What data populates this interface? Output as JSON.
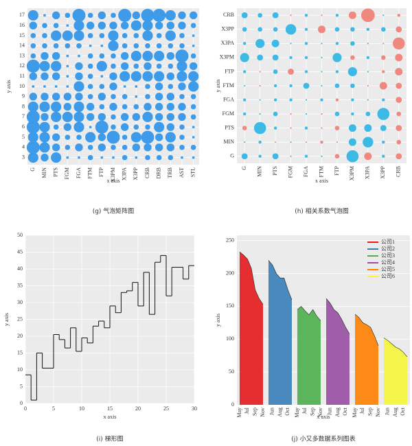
{
  "chart_data": [
    {
      "type": "bubble",
      "caption": "(g) 气泡矩阵图",
      "x_label": "x axis",
      "y_label": "y axis",
      "color": "#3d9be9",
      "categories": [
        "G",
        "MIN",
        "PTS",
        "FGM",
        "FGA",
        "FTM",
        "FTP",
        "X3PM",
        "X3PA",
        "X3PP",
        "CRB",
        "DRB",
        "TRB",
        "AST",
        "STL"
      ],
      "y": [
        3,
        4,
        5,
        6,
        7,
        8,
        9,
        10,
        11,
        12,
        13,
        14,
        15,
        16,
        17
      ],
      "ylim": [
        2.3,
        17.7
      ],
      "yticks": [
        3,
        4,
        5,
        6,
        7,
        8,
        9,
        10,
        11,
        12,
        13,
        14,
        15,
        16,
        17
      ],
      "sizes": [
        [
          4,
          3,
          4,
          1,
          1,
          2,
          1,
          1,
          2,
          1,
          2,
          2,
          2,
          1,
          1
        ],
        [
          5,
          4,
          3,
          2,
          3,
          2,
          3,
          2,
          2,
          3,
          3,
          3,
          3,
          2,
          2
        ],
        [
          4,
          4,
          3,
          2,
          2,
          4,
          3,
          5,
          2,
          4,
          5,
          3,
          4,
          2,
          1
        ],
        [
          5,
          4,
          2,
          3,
          4,
          1,
          5,
          2,
          3,
          2,
          2,
          4,
          3,
          2,
          1
        ],
        [
          5,
          3,
          4,
          4,
          4,
          3,
          3,
          2,
          3,
          3,
          4,
          3,
          3,
          3,
          2
        ],
        [
          4,
          4,
          4,
          3,
          4,
          3,
          2,
          3,
          2,
          2,
          3,
          3,
          3,
          3,
          2
        ],
        [
          3,
          3,
          3,
          3,
          3,
          2,
          3,
          2,
          2,
          1,
          2,
          3,
          3,
          2,
          2
        ],
        [
          1,
          1,
          1,
          1,
          4,
          2,
          2,
          3,
          1,
          1,
          2,
          3,
          2,
          3,
          4
        ],
        [
          3,
          3,
          3,
          1,
          3,
          2,
          1,
          3,
          4,
          4,
          4,
          4,
          3,
          4,
          4
        ],
        [
          5,
          4,
          4,
          1,
          3,
          2,
          4,
          2,
          3,
          2,
          3,
          2,
          2,
          4,
          3
        ],
        [
          2,
          3,
          3,
          1,
          1,
          2,
          2,
          2,
          3,
          4,
          4,
          4,
          3,
          5,
          2
        ],
        [
          2,
          2,
          2,
          2,
          2,
          1,
          1,
          4,
          2,
          2,
          2,
          2,
          2,
          2,
          1
        ],
        [
          2,
          2,
          4,
          4,
          4,
          2,
          2,
          4,
          2,
          2,
          4,
          2,
          4,
          2,
          1
        ],
        [
          3,
          2,
          2,
          1,
          4,
          3,
          3,
          3,
          3,
          4,
          4,
          3,
          3,
          3,
          2
        ],
        [
          4,
          1,
          3,
          2,
          5,
          2,
          3,
          2,
          5,
          3,
          5,
          5,
          4,
          3,
          3
        ]
      ]
    },
    {
      "type": "correlation",
      "caption": "(h) 相关系数气泡图",
      "x_label": "x axis",
      "y_label": "y axis",
      "positive_color": "#3cb9e4",
      "negative_color": "#f0887f",
      "categories": [
        "G",
        "MIN",
        "PTS",
        "FGM",
        "FGA",
        "FTM",
        "FTP",
        "X3PM",
        "X3PA",
        "X3PP",
        "CRB"
      ],
      "row_categories": [
        "G",
        "MIN",
        "PTS",
        "FGM",
        "FGA",
        "FTM",
        "FTP",
        "X3PM",
        "X3PA",
        "X3PP",
        "CRB"
      ],
      "values": [
        [
          0.4,
          0.2,
          0.4,
          -0.1,
          0.2,
          0.1,
          -0.3,
          0.8,
          -0.5,
          0.2,
          -0.4
        ],
        [
          0.1,
          0.2,
          -0.1,
          0.1,
          -0.1,
          -0.2,
          -0.1,
          0.5,
          0.7,
          0.2,
          -0.3
        ],
        [
          -0.3,
          0.8,
          0.2,
          -0.1,
          0.2,
          -0.1,
          -0.3,
          0.5,
          0.5,
          0.4,
          -0.4
        ],
        [
          0.2,
          0.1,
          0.3,
          -0.1,
          0.1,
          -0.1,
          0.3,
          0.2,
          0.3,
          0.8,
          -0.3
        ],
        [
          0.2,
          0.1,
          0.2,
          0.2,
          0.1,
          0.2,
          -0.2,
          0.2,
          0.1,
          0.2,
          -0.4
        ],
        [
          0.1,
          -0.1,
          0.2,
          0.2,
          0.4,
          0.1,
          0.3,
          0.3,
          -0.1,
          -0.5,
          -0.4
        ],
        [
          0.2,
          -0.1,
          0.3,
          -0.4,
          0.2,
          0.1,
          0.2,
          0.6,
          0.1,
          -0.2,
          -0.5
        ],
        [
          0.6,
          0.4,
          0.4,
          0.2,
          0.2,
          0.1,
          0.6,
          -0.3,
          0.2,
          -0.3,
          -0.5
        ],
        [
          0.2,
          0.6,
          0.5,
          0.1,
          0.2,
          0.1,
          0.2,
          0.3,
          0.1,
          -0.1,
          -0.8
        ],
        [
          0.3,
          0.3,
          0.3,
          0.7,
          0.2,
          -0.5,
          0.3,
          0.3,
          0.2,
          0.3,
          -0.4
        ],
        [
          0.4,
          0.3,
          0.4,
          -0.1,
          0.2,
          -0.1,
          0.2,
          -0.5,
          -0.9,
          0.1,
          -0.2
        ]
      ]
    },
    {
      "type": "step",
      "caption": "(i) 梯形图",
      "x_label": "x axis",
      "y_label": "y axis",
      "color": "#111111",
      "x": [
        0,
        1,
        2,
        3,
        4,
        5,
        6,
        7,
        8,
        9,
        10,
        11,
        12,
        13,
        14,
        15,
        16,
        17,
        18,
        19,
        20,
        21,
        22,
        23,
        24,
        25,
        26,
        27,
        28,
        29,
        30
      ],
      "values": [
        8.5,
        1,
        15,
        10.5,
        10.5,
        20.5,
        19,
        16.5,
        22.5,
        15.5,
        19.5,
        18,
        23,
        24.5,
        22.5,
        29,
        27,
        33,
        33.5,
        36,
        29,
        39,
        26.5,
        42,
        44,
        32,
        40.5,
        40.5,
        37,
        41,
        41
      ],
      "xlim": [
        0,
        30
      ],
      "xticks": [
        0,
        5,
        10,
        15,
        20,
        25,
        30
      ],
      "ylim": [
        0,
        50
      ],
      "yticks": [
        0,
        5,
        10,
        15,
        20,
        25,
        30,
        35,
        40,
        45,
        50
      ]
    },
    {
      "type": "area",
      "caption": "(j) 小又多数据系列图表",
      "x_label": "x axis",
      "y_label": "y axis",
      "legend": "upper right",
      "ylim": [
        0,
        258
      ],
      "yticks": [
        0,
        50,
        100,
        150,
        200,
        250
      ],
      "series": [
        {
          "name": "公司1",
          "color": "#e41a1c",
          "categories": [
            "May",
            null,
            "Jul",
            null,
            "Sep",
            null,
            "Nov"
          ],
          "values": [
            233,
            228,
            222,
            208,
            175,
            162,
            153
          ]
        },
        {
          "name": "公司2",
          "color": "#377eb8",
          "categories": [
            null,
            "Jun",
            null,
            "Aug",
            null,
            "Oct",
            null
          ],
          "values": [
            220,
            213,
            200,
            193,
            193,
            175,
            160
          ]
        },
        {
          "name": "公司3",
          "color": "#4daf4a",
          "categories": [
            "May",
            null,
            "Jul",
            null,
            "Sep",
            null,
            "Nov"
          ],
          "values": [
            145,
            150,
            143,
            137,
            145,
            135,
            128
          ]
        },
        {
          "name": "公司4",
          "color": "#984ea3",
          "categories": [
            null,
            "Jun",
            null,
            "Aug",
            null,
            "Oct",
            null
          ],
          "values": [
            162,
            155,
            145,
            140,
            130,
            118,
            108
          ]
        },
        {
          "name": "公司5",
          "color": "#ff7f00",
          "categories": [
            "May",
            null,
            "Jul",
            null,
            "Sep",
            null,
            "Nov"
          ],
          "values": [
            138,
            133,
            125,
            122,
            118,
            105,
            90
          ]
        },
        {
          "name": "公司6",
          "color": "#f5f53a",
          "categories": [
            null,
            "Jun",
            null,
            "Aug",
            null,
            "Oct",
            null
          ],
          "values": [
            102,
            98,
            93,
            88,
            85,
            80,
            73
          ]
        }
      ]
    }
  ]
}
